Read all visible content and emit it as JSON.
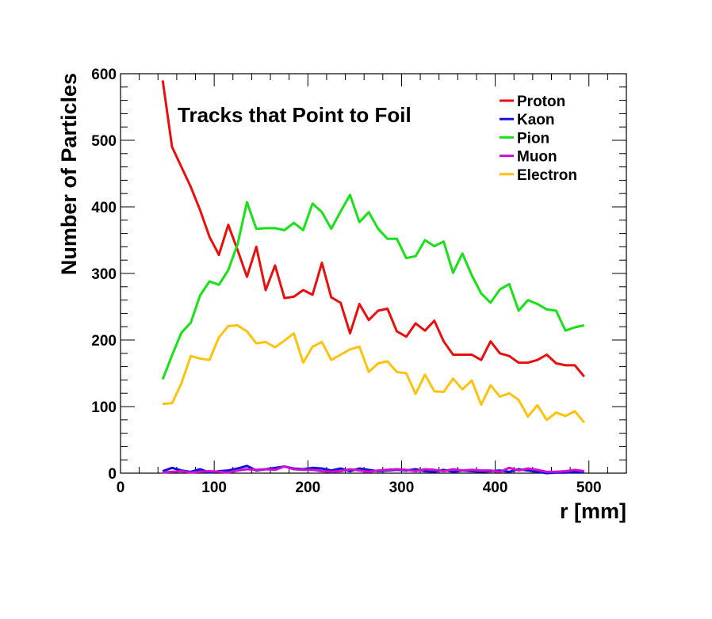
{
  "chart_data": {
    "type": "line",
    "title": "Tracks that Point to Foil",
    "xlabel": "r [mm]",
    "ylabel": "Number of Particles",
    "xlim": [
      0,
      540
    ],
    "ylim": [
      0,
      600
    ],
    "xticks": [
      0,
      100,
      200,
      300,
      400,
      500
    ],
    "yticks": [
      0,
      100,
      200,
      300,
      400,
      500,
      600
    ],
    "xtick_labels": [
      "0",
      "100",
      "200",
      "300",
      "400",
      "500"
    ],
    "ytick_labels": [
      "0",
      "100",
      "200",
      "300",
      "400",
      "500",
      "600"
    ],
    "grid": false,
    "legend_position": "top-right",
    "x": [
      45,
      55,
      65,
      75,
      85,
      95,
      105,
      115,
      125,
      135,
      145,
      155,
      165,
      175,
      185,
      195,
      205,
      215,
      225,
      235,
      245,
      255,
      265,
      275,
      285,
      295,
      305,
      315,
      325,
      335,
      345,
      355,
      365,
      375,
      385,
      395,
      405,
      415,
      425,
      435,
      445,
      455,
      465,
      475,
      485,
      495
    ],
    "series": [
      {
        "name": "Proton",
        "color": "#e8100f",
        "values": [
          590,
          490,
          460,
          430,
          395,
          355,
          328,
          373,
          335,
          295,
          340,
          275,
          312,
          263,
          265,
          275,
          268,
          316,
          264,
          256,
          210,
          254,
          230,
          244,
          247,
          213,
          205,
          225,
          214,
          229,
          198,
          178,
          178,
          178,
          170,
          198,
          180,
          176,
          166,
          166,
          170,
          178,
          165,
          162,
          162,
          145
        ]
      },
      {
        "name": "Kaon",
        "color": "#1010e0",
        "values": [
          3,
          8,
          4,
          2,
          6,
          1,
          3,
          4,
          7,
          11,
          4,
          6,
          8,
          10,
          7,
          6,
          8,
          7,
          4,
          7,
          3,
          7,
          5,
          3,
          4,
          5,
          4,
          6,
          3,
          2,
          5,
          2,
          4,
          3,
          2,
          3,
          4,
          2,
          6,
          4,
          2,
          0,
          1,
          1,
          2,
          1
        ]
      },
      {
        "name": "Pion",
        "color": "#19e019",
        "values": [
          141,
          177,
          211,
          226,
          267,
          288,
          283,
          305,
          344,
          407,
          367,
          368,
          368,
          365,
          376,
          365,
          405,
          392,
          367,
          393,
          418,
          377,
          392,
          367,
          352,
          352,
          323,
          326,
          350,
          341,
          348,
          301,
          330,
          297,
          270,
          256,
          276,
          284,
          244,
          260,
          254,
          246,
          244,
          214,
          219,
          222
        ]
      },
      {
        "name": "Muon",
        "color": "#d010d0",
        "values": [
          1,
          2,
          3,
          1,
          2,
          3,
          2,
          1,
          4,
          6,
          5,
          6,
          5,
          10,
          6,
          5,
          5,
          3,
          2,
          3,
          6,
          4,
          2,
          4,
          5,
          6,
          5,
          3,
          6,
          5,
          3,
          6,
          4,
          5,
          4,
          4,
          2,
          8,
          4,
          7,
          5,
          2,
          2,
          3,
          5,
          3
        ]
      },
      {
        "name": "Electron",
        "color": "#ffc20d",
        "values": [
          104,
          105,
          135,
          176,
          172,
          170,
          204,
          221,
          222,
          213,
          195,
          197,
          189,
          199,
          210,
          166,
          190,
          197,
          170,
          178,
          186,
          190,
          152,
          165,
          168,
          152,
          150,
          119,
          148,
          123,
          122,
          142,
          126,
          139,
          103,
          132,
          115,
          120,
          110,
          85,
          102,
          80,
          91,
          86,
          93,
          76
        ]
      }
    ]
  }
}
